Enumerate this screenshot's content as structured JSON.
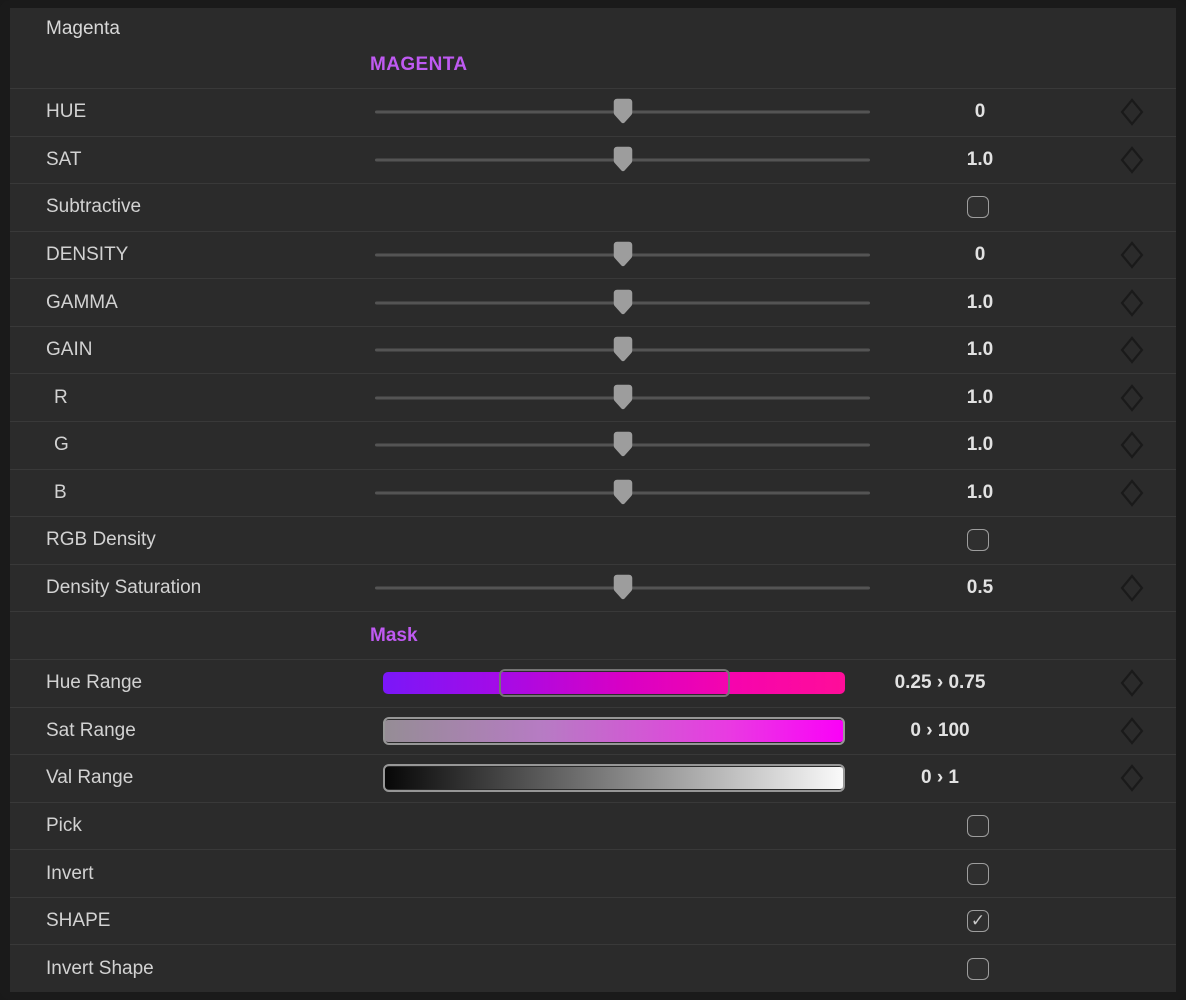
{
  "panel": {
    "title": "Magenta",
    "section_header": "MAGENTA",
    "accent_color": "#bf5af2",
    "label_color": "#d2d2d2",
    "background_color": "#2b2b2b",
    "frame_color": "#1a1a1a"
  },
  "icons": {
    "keyframe_diamond": "diamond-outline",
    "slider_handle": "shield-handle",
    "checkbox_check": "✓"
  },
  "gradients": {
    "hue": [
      "#7a17f8 0%",
      "#a40be7 25%",
      "#d800c5 52%",
      "#f604ad 76%",
      "#ff0d99 100%"
    ],
    "sat": [
      "#958d95 0%",
      "#b77bc4 35%",
      "#e93ae2 75%",
      "#fb00f8 100%"
    ],
    "val": [
      "#060606 0%",
      "#fbfbfb 100%"
    ]
  },
  "rows": [
    {
      "type": "slider",
      "label": "HUE",
      "value": "0",
      "handle": 0.5,
      "keyframe": true
    },
    {
      "type": "slider",
      "label": "SAT",
      "value": "1.0",
      "handle": 0.5,
      "keyframe": true
    },
    {
      "type": "checkbox",
      "label": "Subtractive",
      "checked": false
    },
    {
      "type": "slider",
      "label": "DENSITY",
      "value": "0",
      "handle": 0.5,
      "keyframe": true
    },
    {
      "type": "slider",
      "label": "GAMMA",
      "value": "1.0",
      "handle": 0.5,
      "keyframe": true
    },
    {
      "type": "slider",
      "label": "GAIN",
      "value": "1.0",
      "handle": 0.5,
      "keyframe": true
    },
    {
      "type": "slider",
      "label": "R",
      "value": "1.0",
      "handle": 0.5,
      "keyframe": true,
      "indent": true
    },
    {
      "type": "slider",
      "label": "G",
      "value": "1.0",
      "handle": 0.5,
      "keyframe": true,
      "indent": true
    },
    {
      "type": "slider",
      "label": "B",
      "value": "1.0",
      "handle": 0.5,
      "keyframe": true,
      "indent": true
    },
    {
      "type": "checkbox",
      "label": "RGB Density",
      "checked": false
    },
    {
      "type": "slider",
      "label": "Density Saturation",
      "value": "0.5",
      "handle": 0.5,
      "keyframe": true
    },
    {
      "type": "section",
      "label": "Mask"
    },
    {
      "type": "range",
      "label": "Hue Range",
      "value": "0.25 › 0.75",
      "gradient": "hue",
      "sel_start": 0.25,
      "sel_end": 0.75,
      "keyframe": true
    },
    {
      "type": "range",
      "label": "Sat Range",
      "value": "0 › 100",
      "gradient": "sat",
      "sel_start": 0,
      "sel_end": 1,
      "keyframe": true
    },
    {
      "type": "range",
      "label": "Val Range",
      "value": "0 › 1",
      "gradient": "val",
      "sel_start": 0,
      "sel_end": 1,
      "keyframe": true
    },
    {
      "type": "checkbox",
      "label": "Pick",
      "checked": false
    },
    {
      "type": "checkbox",
      "label": "Invert",
      "checked": false
    },
    {
      "type": "checkbox",
      "label": "SHAPE",
      "checked": true
    },
    {
      "type": "checkbox",
      "label": "Invert Shape",
      "checked": false
    }
  ]
}
